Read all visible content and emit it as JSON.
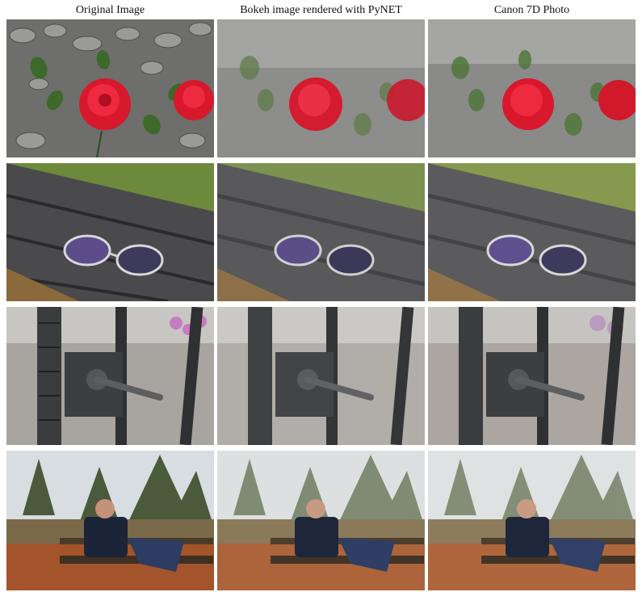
{
  "figure": {
    "columns": [
      {
        "label": "Original Image"
      },
      {
        "label": "Bokeh image rendered with PyNET"
      },
      {
        "label": "Canon 7D Photo"
      }
    ],
    "rows": [
      {
        "scene": "red-roses-on-gravel",
        "icon": "rose-icon"
      },
      {
        "scene": "glasses-on-wooden-bench",
        "icon": "glasses-icon"
      },
      {
        "scene": "gate-door-handle",
        "icon": "door-handle-icon"
      },
      {
        "scene": "man-on-park-bench",
        "icon": "person-icon"
      }
    ]
  }
}
